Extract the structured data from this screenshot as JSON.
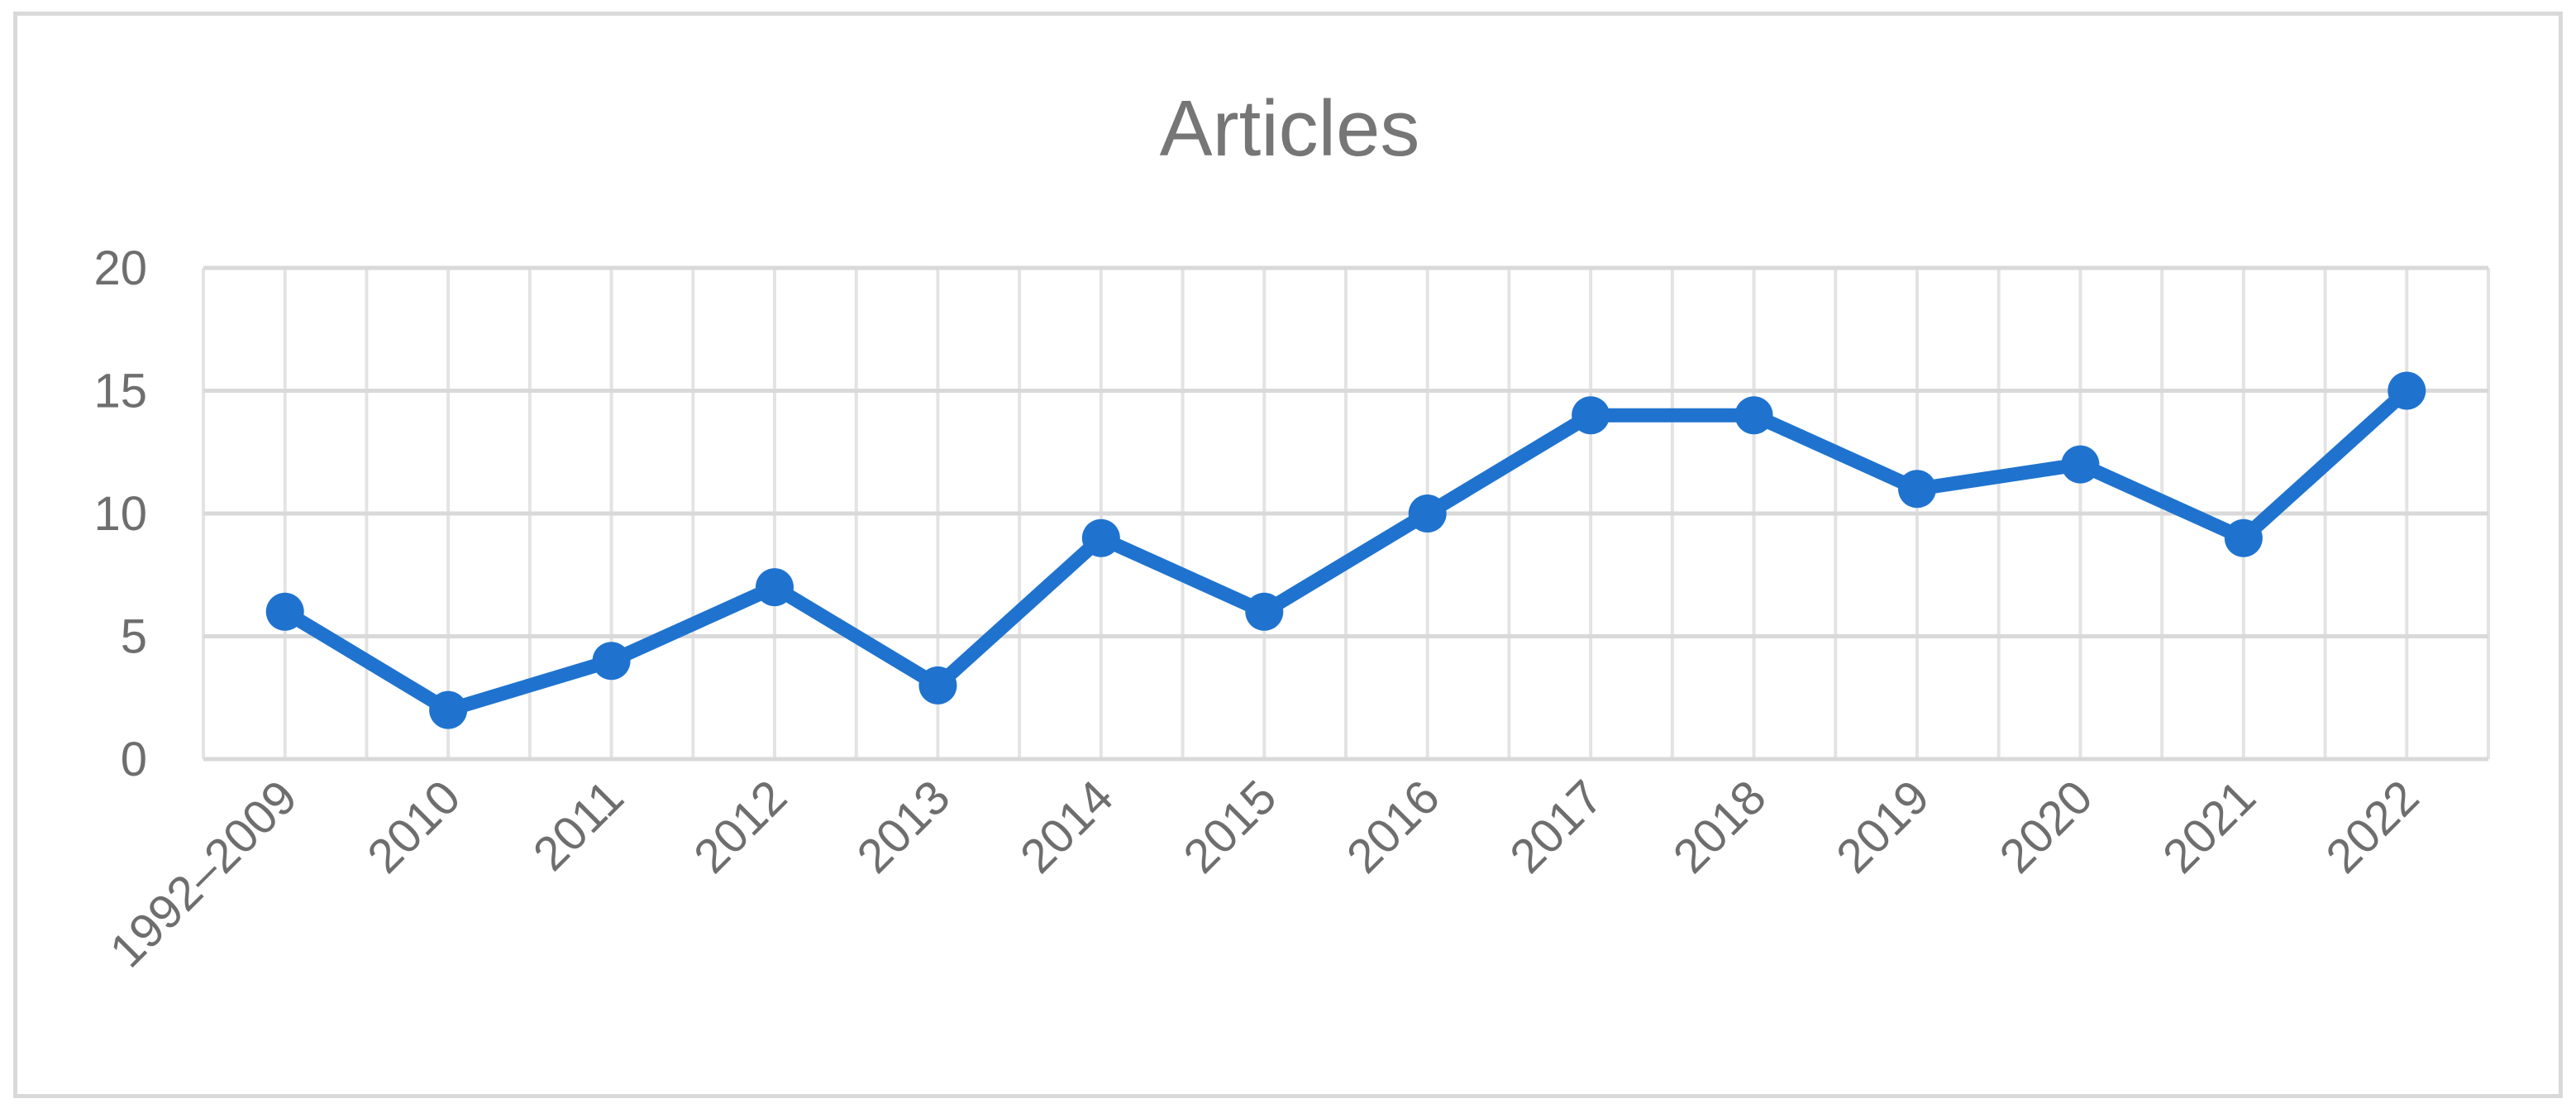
{
  "chart_data": {
    "type": "line",
    "title": "Articles",
    "xlabel": "",
    "ylabel": "",
    "categories": [
      "1992–2009",
      "2010",
      "2011",
      "2012",
      "2013",
      "2014",
      "2015",
      "2016",
      "2017",
      "2018",
      "2019",
      "2020",
      "2021",
      "2022"
    ],
    "series": [
      {
        "values": [
          6,
          2,
          4,
          7,
          3,
          9,
          6,
          10,
          14,
          14,
          11,
          12,
          9,
          15
        ],
        "color": "#1f73cf"
      }
    ],
    "ylim": [
      0,
      20
    ],
    "yticks": [
      "0",
      "5",
      "10",
      "15",
      "20"
    ],
    "grid": true,
    "legend": "none",
    "markers": true
  }
}
